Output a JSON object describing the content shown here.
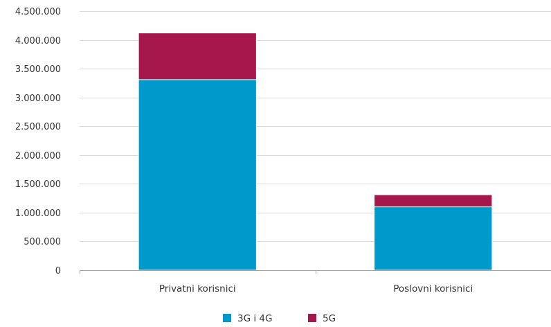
{
  "chart_data": {
    "type": "bar",
    "stacked": true,
    "categories": [
      "Privatni korisnici",
      "Poslovni korisnici"
    ],
    "series": [
      {
        "name": "3G i 4G",
        "color": "#0099cc",
        "values": [
          3310000,
          1100000
        ]
      },
      {
        "name": "5G",
        "color": "#a6174b",
        "values": [
          810000,
          210000
        ]
      }
    ],
    "ylim": [
      0,
      4500000
    ],
    "yticks": [
      0,
      500000,
      1000000,
      1500000,
      2000000,
      2500000,
      3000000,
      3500000,
      4000000,
      4500000
    ],
    "ytick_labels": [
      "0",
      "500.000",
      "1.000.000",
      "1.500.000",
      "2.000.000",
      "2.500.000",
      "3.000.000",
      "3.500.000",
      "4.000.000",
      "4.500.000"
    ],
    "grid": true,
    "legend_position": "bottom",
    "title": "",
    "xlabel": "",
    "ylabel": ""
  }
}
